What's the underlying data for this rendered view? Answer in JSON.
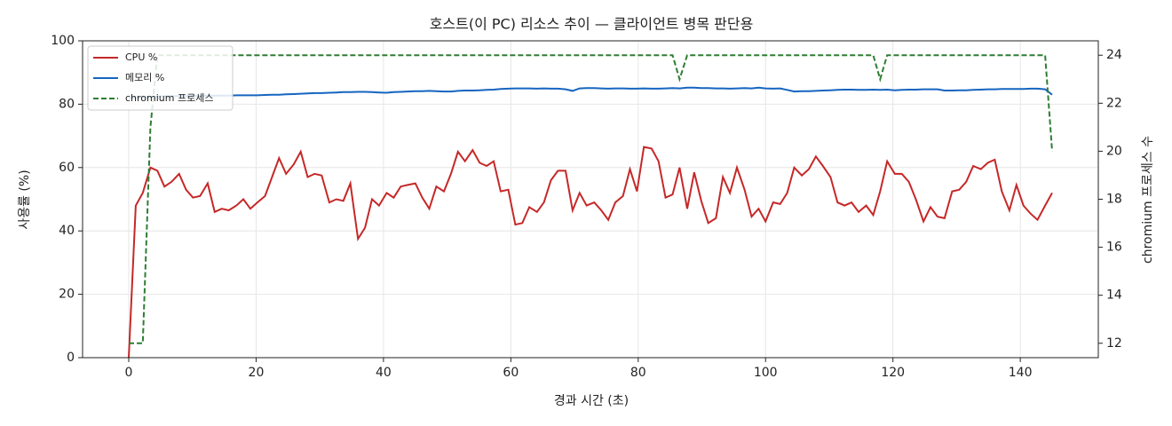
{
  "chart_data": {
    "type": "line",
    "title": "호스트(이 PC) 리소스 추이 — 클라이언트 병목 판단용",
    "x_label": "경과 시간 (초)",
    "y_label": "사용률 (%)",
    "y2_label": "chromium 프로세스 수",
    "x": [
      0,
      1.1,
      2.2,
      3.4,
      4.5,
      5.6,
      6.7,
      7.9,
      9.0,
      10.1,
      11.2,
      12.4,
      13.5,
      14.6,
      15.7,
      16.9,
      18.0,
      19.1,
      20.2,
      21.4,
      22.5,
      23.6,
      24.7,
      25.9,
      27.0,
      28.1,
      29.2,
      30.3,
      31.5,
      32.6,
      33.7,
      34.8,
      36.0,
      37.1,
      38.2,
      39.3,
      40.5,
      41.6,
      42.7,
      43.8,
      45.0,
      46.1,
      47.2,
      48.3,
      49.5,
      50.6,
      51.7,
      52.8,
      54.0,
      55.1,
      56.2,
      57.3,
      58.4,
      59.6,
      60.7,
      61.8,
      62.9,
      64.1,
      65.2,
      66.3,
      67.4,
      68.6,
      69.7,
      70.8,
      71.9,
      73.1,
      74.2,
      75.3,
      76.4,
      77.6,
      78.7,
      79.8,
      80.9,
      82.1,
      83.2,
      84.3,
      85.4,
      86.5,
      87.7,
      88.8,
      89.9,
      91.0,
      92.2,
      93.3,
      94.4,
      95.5,
      96.7,
      97.8,
      98.9,
      100.0,
      101.2,
      102.3,
      103.4,
      104.5,
      105.7,
      106.8,
      107.9,
      109.0,
      110.2,
      111.3,
      112.4,
      113.5,
      114.6,
      115.8,
      116.9,
      118.0,
      119.1,
      120.3,
      121.4,
      122.5,
      123.6,
      124.8,
      125.9,
      127.0,
      128.1,
      129.3,
      130.4,
      131.5,
      132.6,
      133.8,
      134.9,
      136.0,
      137.1,
      138.3,
      139.4,
      140.5,
      141.6,
      142.7,
      143.9,
      145.0
    ],
    "series": [
      {
        "name": "CPU %",
        "color": "#c62828",
        "axis": "y",
        "dashed": false,
        "values": [
          0,
          48,
          52,
          60,
          59,
          54,
          55.5,
          58,
          53,
          50.5,
          51,
          55,
          46,
          47,
          46.5,
          48,
          50,
          47,
          49,
          51,
          57,
          63,
          58,
          61,
          65,
          57,
          58,
          57.5,
          49,
          50,
          49.5,
          55,
          37.5,
          41,
          50,
          48,
          52,
          50.5,
          54,
          54.5,
          55,
          50.5,
          47,
          54,
          52.5,
          58,
          65,
          62,
          65.5,
          61.5,
          60.5,
          62,
          52.5,
          53,
          42,
          42.5,
          47.5,
          46,
          49,
          56,
          59,
          59,
          46.5,
          52,
          48,
          49,
          46.5,
          43.5,
          49,
          51,
          59.5,
          52.5,
          66.5,
          66,
          62,
          50.5,
          51.5,
          60,
          47,
          58.5,
          49.5,
          42.5,
          44,
          57,
          52,
          60,
          53,
          44.5,
          47,
          43,
          49,
          48.5,
          52,
          60,
          57.5,
          59.5,
          63.5,
          60.5,
          57,
          49,
          48,
          49,
          46,
          48,
          45,
          52.5,
          62,
          58,
          58,
          55.5,
          50,
          43,
          47.5,
          44.5,
          44,
          52.5,
          53,
          55.5,
          60.5,
          59.5,
          61.5,
          62.5,
          52.5,
          46.5,
          54.5,
          48,
          45.5,
          43.5,
          48,
          52
        ]
      },
      {
        "name": "메모리 %",
        "color": "#1565c0",
        "axis": "y",
        "dashed": false,
        "values": [
          82,
          82.1,
          82.2,
          82.3,
          82.4,
          82.5,
          82.5,
          82.6,
          82.6,
          82.6,
          82.7,
          82.7,
          82.7,
          82.7,
          82.7,
          82.8,
          82.8,
          82.8,
          82.8,
          82.9,
          83,
          83,
          83.1,
          83.2,
          83.3,
          83.4,
          83.5,
          83.5,
          83.6,
          83.7,
          83.8,
          83.8,
          83.9,
          83.9,
          83.8,
          83.7,
          83.6,
          83.8,
          83.9,
          84,
          84.1,
          84.1,
          84.2,
          84.1,
          84,
          84,
          84.2,
          84.3,
          84.3,
          84.4,
          84.5,
          84.6,
          84.8,
          84.9,
          85,
          85,
          85,
          84.9,
          85,
          84.9,
          84.9,
          84.7,
          84.2,
          85,
          85.1,
          85.1,
          85,
          84.9,
          85,
          85,
          84.9,
          84.9,
          85,
          84.9,
          84.9,
          85,
          85.1,
          85,
          85.2,
          85.2,
          85.1,
          85.1,
          85,
          85,
          84.9,
          85,
          85.1,
          85,
          85.2,
          85,
          84.9,
          85,
          84.5,
          84,
          84.1,
          84.1,
          84.2,
          84.3,
          84.4,
          84.5,
          84.6,
          84.6,
          84.5,
          84.5,
          84.6,
          84.5,
          84.6,
          84.4,
          84.5,
          84.6,
          84.6,
          84.7,
          84.7,
          84.7,
          84.3,
          84.3,
          84.4,
          84.4,
          84.5,
          84.6,
          84.7,
          84.7,
          84.8,
          84.8,
          84.8,
          84.8,
          84.9,
          84.9,
          84.7,
          83
        ]
      },
      {
        "name": "chromium 프로세스",
        "color": "#2e7d32",
        "axis": "y2",
        "dashed": true,
        "values": [
          12,
          12,
          12,
          21,
          24,
          24,
          24,
          24,
          24,
          24,
          24,
          24,
          24,
          24,
          24,
          24,
          24,
          24,
          24,
          24,
          24,
          24,
          24,
          24,
          24,
          24,
          24,
          24,
          24,
          24,
          24,
          24,
          24,
          24,
          24,
          24,
          24,
          24,
          24,
          24,
          24,
          24,
          24,
          24,
          24,
          24,
          24,
          24,
          24,
          24,
          24,
          24,
          24,
          24,
          24,
          24,
          24,
          24,
          24,
          24,
          24,
          24,
          24,
          24,
          24,
          24,
          24,
          24,
          24,
          24,
          24,
          24,
          24,
          24,
          24,
          24,
          24,
          23,
          24,
          24,
          24,
          24,
          24,
          24,
          24,
          24,
          24,
          24,
          24,
          24,
          24,
          24,
          24,
          24,
          24,
          24,
          24,
          24,
          24,
          24,
          24,
          24,
          24,
          24,
          24,
          23,
          24,
          24,
          24,
          24,
          24,
          24,
          24,
          24,
          24,
          24,
          24,
          24,
          24,
          24,
          24,
          24,
          24,
          24,
          24,
          24,
          24,
          24,
          24,
          20
        ]
      }
    ],
    "xlim": [
      -7.25,
      152.25
    ],
    "xticks": [
      0,
      20,
      40,
      60,
      80,
      100,
      120,
      140
    ],
    "ylim": [
      0,
      100
    ],
    "yticks": [
      0,
      20,
      40,
      60,
      80,
      100
    ],
    "y2lim": [
      11.4,
      24.6
    ],
    "y2ticks": [
      12,
      14,
      16,
      18,
      20,
      22,
      24
    ],
    "grid": true,
    "legend": "upper-left"
  }
}
